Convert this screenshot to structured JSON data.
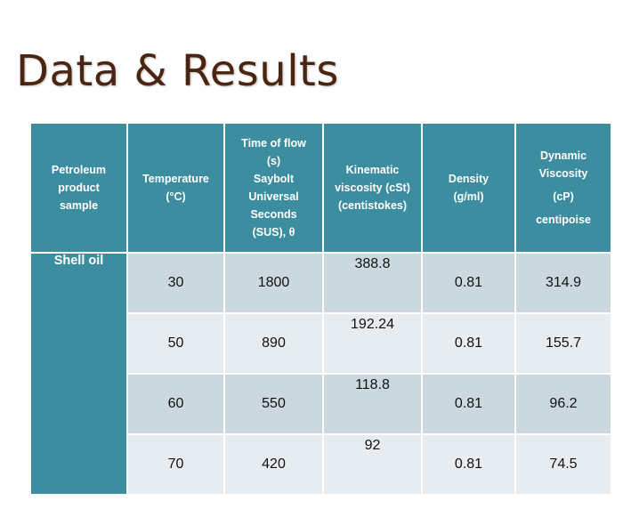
{
  "title": "Data & Results",
  "table": {
    "headers": [
      [
        "Petroleum",
        "product",
        "sample"
      ],
      [
        "Temperature",
        "(°C)"
      ],
      [
        "Time of flow",
        "(s)",
        "Saybolt",
        "Universal",
        "Seconds",
        "(SUS), θ"
      ],
      [
        "Kinematic",
        "viscosity (cSt)",
        "(centistokes)"
      ],
      [
        "Density",
        "(g/ml)"
      ],
      [
        "Dynamic",
        "Viscosity",
        "(cP)",
        "centipoise"
      ]
    ],
    "sample_name": "Shell oil",
    "rows": [
      {
        "temperature": "30",
        "time": "1800",
        "kinematic": "388.8",
        "density": "0.81",
        "dynamic": "314.9"
      },
      {
        "temperature": "50",
        "time": "890",
        "kinematic": "192.24",
        "density": "0.81",
        "dynamic": "155.7"
      },
      {
        "temperature": "60",
        "time": "550",
        "kinematic": "118.8",
        "density": "0.81",
        "dynamic": "96.2"
      },
      {
        "temperature": "70",
        "time": "420",
        "kinematic": "92",
        "density": "0.81",
        "dynamic": "74.5"
      }
    ]
  },
  "colors": {
    "header_bg": "#3c8da0",
    "row_dark": "#cbd8df",
    "row_light": "#e6ecf0",
    "title": "#4a2511"
  }
}
